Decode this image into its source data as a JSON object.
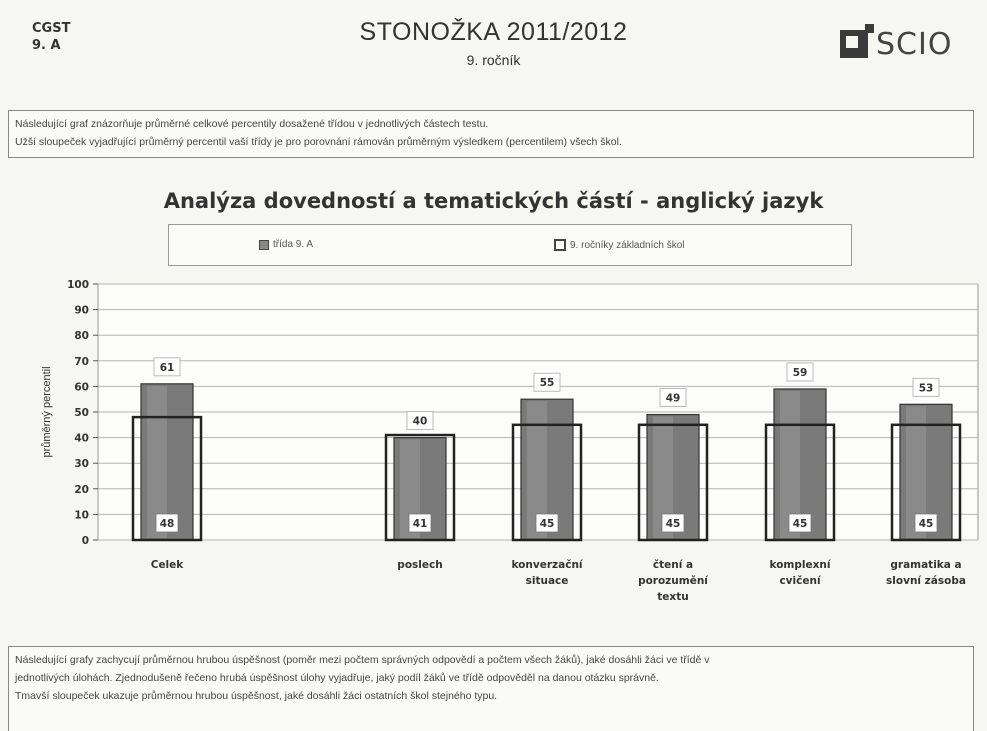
{
  "header": {
    "school": "CGST",
    "class": "9. A",
    "title": "STONOŽKA 2011/2012",
    "subtitle": "9. ročník",
    "logo_text": "SCIO"
  },
  "intro": {
    "line1": "Následující graf znázorňuje průměrné celkové percentily dosažené třídou v jednotlivých částech testu.",
    "line2": "Užší sloupeček vyjadřující průměrný percentil vaší třídy je pro porovnání rámován průměrným výsledkem (percentilem) všech škol."
  },
  "chart_data": {
    "type": "bar",
    "title": "Analýza dovedností a tematických částí - anglický jazyk",
    "ylabel": "průměrný percentil",
    "ylim": [
      0,
      100
    ],
    "yticks": [
      0,
      10,
      20,
      30,
      40,
      50,
      60,
      70,
      80,
      90,
      100
    ],
    "grid": true,
    "legend_position": "top",
    "categories": [
      [
        "Celek"
      ],
      [
        "poslech"
      ],
      [
        "konverzační",
        "situace"
      ],
      [
        "čtení a",
        "porozumění",
        "textu"
      ],
      [
        "komplexní",
        "cvičení"
      ],
      [
        "gramatika a",
        "slovní zásoba"
      ]
    ],
    "series": [
      {
        "name": "třída 9. A",
        "values": [
          61,
          40,
          55,
          49,
          59,
          53
        ],
        "color": "#7a7a7a"
      },
      {
        "name": "9. ročníky základních škol",
        "values": [
          48,
          41,
          45,
          45,
          45,
          45
        ],
        "color": "#ffffff"
      }
    ]
  },
  "legend": {
    "class_label": "třída 9. A",
    "schools_label": "9. ročníky základních škol"
  },
  "outro": {
    "line1": "Následující grafy zachycují průměrnou hrubou úspěšnost (poměr mezi počtem správných odpovědí a počtem všech žáků), jaké dosáhli žáci ve třídě v",
    "line2": "jednotlivých úlohách. Zjednodušeně řečeno hrubá úspěšnost úlohy vyjadřuje, jaký podíl žáků ve třídě odpověděl na danou otázku správně.",
    "line3": "Tmavší sloupeček ukazuje průměrnou hrubou úspěšnost, jaké dosáhli žáci ostatních škol stejného typu."
  }
}
